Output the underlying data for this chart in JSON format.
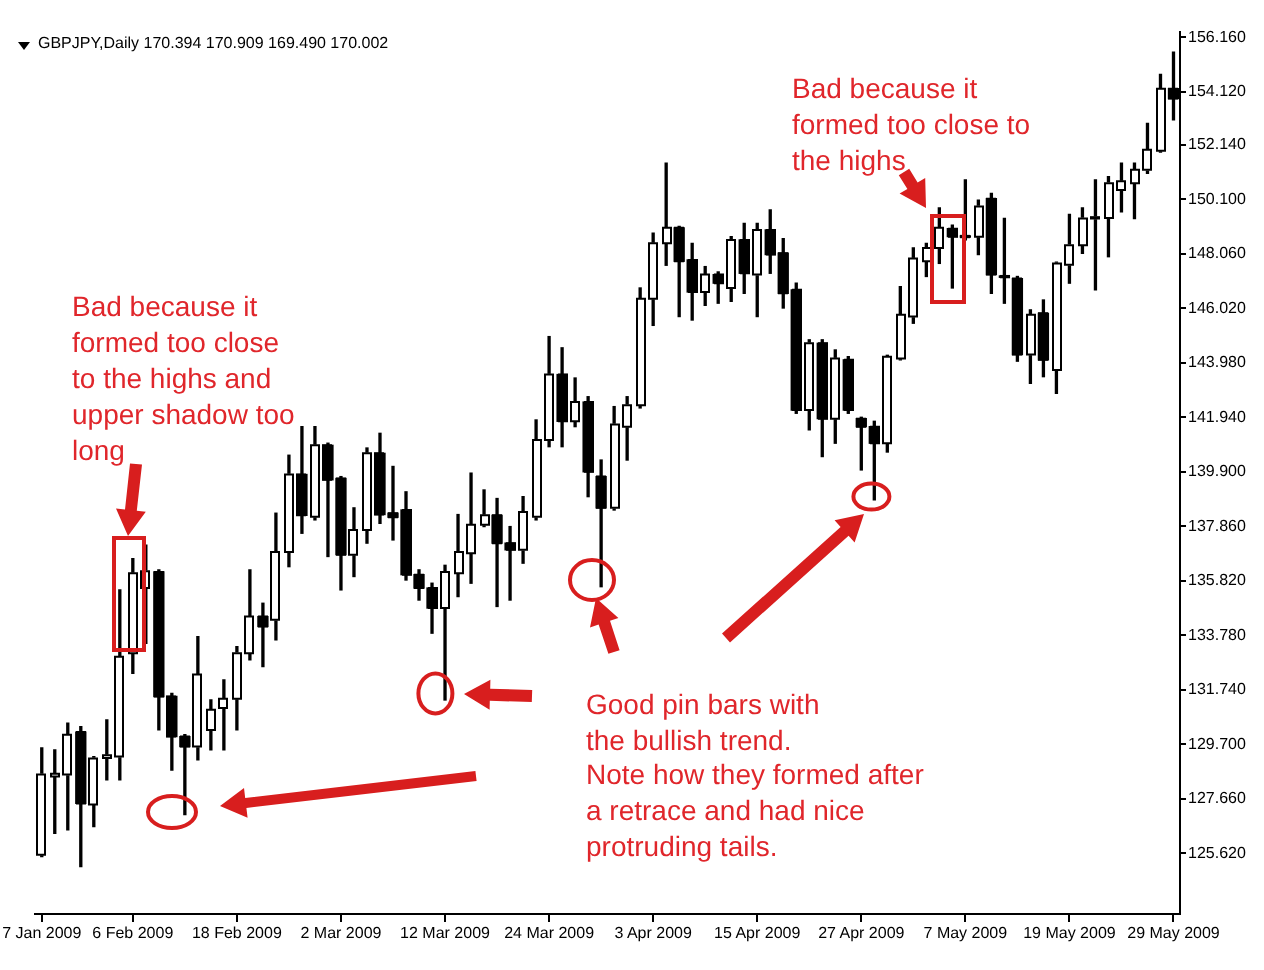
{
  "chart_data": {
    "type": "candlestick",
    "title": "GBPJPY,Daily 170.394 170.909 169.490 170.002",
    "categories": [
      "7 Jan 2009",
      null,
      null,
      null,
      null,
      null,
      null,
      "6 Feb 2009",
      null,
      null,
      null,
      null,
      null,
      null,
      null,
      "18 Feb 2009",
      null,
      null,
      null,
      null,
      null,
      null,
      null,
      "2 Mar 2009",
      null,
      null,
      null,
      null,
      null,
      null,
      null,
      "12 Mar 2009",
      null,
      null,
      null,
      null,
      null,
      null,
      null,
      "24 Mar 2009",
      null,
      null,
      null,
      null,
      null,
      null,
      null,
      "3 Apr 2009",
      null,
      null,
      null,
      null,
      null,
      null,
      null,
      "15 Apr 2009",
      null,
      null,
      null,
      null,
      null,
      null,
      null,
      "27 Apr 2009",
      null,
      null,
      null,
      null,
      null,
      null,
      null,
      "7 May 2009",
      null,
      null,
      null,
      null,
      null,
      null,
      null,
      "19 May 2009",
      null,
      null,
      null,
      null,
      null,
      null,
      null,
      "29 May 2009"
    ],
    "ohlc": [
      [
        125.57,
        129.57,
        125.5,
        128.57
      ],
      [
        128.5,
        129.49,
        126.37,
        128.6
      ],
      [
        128.57,
        130.49,
        126.5,
        130.06
      ],
      [
        130.16,
        130.36,
        125.12,
        127.49
      ],
      [
        127.45,
        129.24,
        126.62,
        129.17
      ],
      [
        129.19,
        130.61,
        128.37,
        129.29
      ],
      [
        129.24,
        135.48,
        128.37,
        132.98
      ],
      [
        133.11,
        136.65,
        132.36,
        136.1
      ],
      [
        135.55,
        137.15,
        133.48,
        136.18
      ],
      [
        136.15,
        136.23,
        130.24,
        131.49
      ],
      [
        131.49,
        131.61,
        128.74,
        129.99
      ],
      [
        129.99,
        130.06,
        127.07,
        129.62
      ],
      [
        129.62,
        133.73,
        129.12,
        132.31
      ],
      [
        130.24,
        131.36,
        129.49,
        130.99
      ],
      [
        131.06,
        132.11,
        129.49,
        131.41
      ],
      [
        131.41,
        133.36,
        130.24,
        133.11
      ],
      [
        133.11,
        136.23,
        132.86,
        134.48
      ],
      [
        134.48,
        134.98,
        132.61,
        134.11
      ],
      [
        134.36,
        138.35,
        133.61,
        136.9
      ],
      [
        136.9,
        140.52,
        136.35,
        139.8
      ],
      [
        139.8,
        141.59,
        137.6,
        138.27
      ],
      [
        138.22,
        141.59,
        138.1,
        140.89
      ],
      [
        140.89,
        140.97,
        136.73,
        139.6
      ],
      [
        139.65,
        139.72,
        135.48,
        136.8
      ],
      [
        136.8,
        138.55,
        135.98,
        137.72
      ],
      [
        137.72,
        140.79,
        137.23,
        140.59
      ],
      [
        140.59,
        141.34,
        137.97,
        138.3
      ],
      [
        138.35,
        140.1,
        137.35,
        138.2
      ],
      [
        138.47,
        139.15,
        135.85,
        136.05
      ],
      [
        136.05,
        136.23,
        135.1,
        135.55
      ],
      [
        135.55,
        135.73,
        133.86,
        134.8
      ],
      [
        134.8,
        136.4,
        131.36,
        136.15
      ],
      [
        136.1,
        138.3,
        135.23,
        136.9
      ],
      [
        136.85,
        139.85,
        135.73,
        137.92
      ],
      [
        137.92,
        139.22,
        137.85,
        138.27
      ],
      [
        138.27,
        138.9,
        134.86,
        137.23
      ],
      [
        137.23,
        137.85,
        135.1,
        136.98
      ],
      [
        136.98,
        138.97,
        136.48,
        138.4
      ],
      [
        138.22,
        141.84,
        138.1,
        141.09
      ],
      [
        141.09,
        144.96,
        140.84,
        143.54
      ],
      [
        143.54,
        144.54,
        140.84,
        141.79
      ],
      [
        141.79,
        143.41,
        141.59,
        142.51
      ],
      [
        142.51,
        142.71,
        138.97,
        139.9
      ],
      [
        139.72,
        140.34,
        135.6,
        138.55
      ],
      [
        138.55,
        142.34,
        138.47,
        141.67
      ],
      [
        141.59,
        142.71,
        140.34,
        142.39
      ],
      [
        142.39,
        146.78,
        142.29,
        146.38
      ],
      [
        146.38,
        148.83,
        145.38,
        148.45
      ],
      [
        148.45,
        151.45,
        147.63,
        149.03
      ],
      [
        149.03,
        149.08,
        145.71,
        147.78
      ],
      [
        147.83,
        148.45,
        145.58,
        146.63
      ],
      [
        146.63,
        147.58,
        146.13,
        147.28
      ],
      [
        147.28,
        147.38,
        146.21,
        146.96
      ],
      [
        146.78,
        148.7,
        146.28,
        148.58
      ],
      [
        148.58,
        149.2,
        146.58,
        147.33
      ],
      [
        147.28,
        149.2,
        145.71,
        148.95
      ],
      [
        148.95,
        149.7,
        147.33,
        148.03
      ],
      [
        148.08,
        148.63,
        146.03,
        146.58
      ],
      [
        146.71,
        146.96,
        142.09,
        142.21
      ],
      [
        142.21,
        144.84,
        141.47,
        144.71
      ],
      [
        144.71,
        144.84,
        140.47,
        141.89
      ],
      [
        141.89,
        144.46,
        140.97,
        144.14
      ],
      [
        144.09,
        144.21,
        142.09,
        142.21
      ],
      [
        141.89,
        141.94,
        139.97,
        141.59
      ],
      [
        141.59,
        141.79,
        138.85,
        140.97
      ],
      [
        140.97,
        144.26,
        140.64,
        144.21
      ],
      [
        144.14,
        146.83,
        144.09,
        145.78
      ],
      [
        145.71,
        148.28,
        145.46,
        147.88
      ],
      [
        147.78,
        148.45,
        147.21,
        148.28
      ],
      [
        148.28,
        149.78,
        147.7,
        149.03
      ],
      [
        149,
        149.13,
        146.78,
        148.7
      ],
      [
        148.73,
        150.82,
        148.58,
        148.68
      ],
      [
        148.7,
        150.07,
        148.03,
        149.83
      ],
      [
        150.12,
        150.32,
        146.58,
        147.28
      ],
      [
        147.23,
        149.38,
        146.21,
        147.18
      ],
      [
        147.13,
        147.21,
        144.04,
        144.29
      ],
      [
        144.29,
        145.96,
        143.21,
        145.78
      ],
      [
        145.83,
        146.33,
        143.46,
        144.09
      ],
      [
        143.71,
        147.75,
        142.84,
        147.7
      ],
      [
        147.65,
        149.53,
        146.96,
        148.38
      ],
      [
        148.38,
        149.78,
        148.08,
        149.38
      ],
      [
        149.38,
        150.82,
        146.71,
        149.43
      ],
      [
        149.4,
        150.95,
        147.95,
        150.7
      ],
      [
        150.45,
        151.45,
        149.63,
        150.77
      ],
      [
        150.7,
        151.45,
        149.38,
        151.2
      ],
      [
        151.2,
        152.94,
        151.07,
        151.95
      ],
      [
        151.92,
        154.77,
        151.87,
        154.24
      ],
      [
        154.24,
        155.61,
        153.07,
        153.87
      ]
    ],
    "color": "#000000",
    "colors": [
      "#ffffff",
      "#ffffff",
      "#ffffff",
      "#000000",
      "#ffffff",
      "#ffffff",
      "#ffffff",
      "#ffffff",
      "#ffffff",
      "#000000",
      "#000000",
      "#000000",
      "#ffffff",
      "#ffffff",
      "#ffffff",
      "#ffffff",
      "#ffffff",
      "#000000",
      "#ffffff",
      "#ffffff",
      "#000000",
      "#ffffff",
      "#000000",
      "#000000",
      "#ffffff",
      "#ffffff",
      "#000000",
      "#000000",
      "#000000",
      "#000000",
      "#000000",
      "#ffffff",
      "#ffffff",
      "#ffffff",
      "#ffffff",
      "#000000",
      "#000000",
      "#ffffff",
      "#ffffff",
      "#ffffff",
      "#000000",
      "#ffffff",
      "#000000",
      "#000000",
      "#ffffff",
      "#ffffff",
      "#ffffff",
      "#ffffff",
      "#ffffff",
      "#000000",
      "#000000",
      "#ffffff",
      "#000000",
      "#ffffff",
      "#000000",
      "#ffffff",
      "#000000",
      "#000000",
      "#000000",
      "#ffffff",
      "#000000",
      "#ffffff",
      "#000000",
      "#000000",
      "#000000",
      "#ffffff",
      "#ffffff",
      "#ffffff",
      "#ffffff",
      "#ffffff",
      "#000000",
      "#000000",
      "#ffffff",
      "#000000",
      "#000000",
      "#000000",
      "#ffffff",
      "#000000",
      "#ffffff",
      "#ffffff",
      "#ffffff",
      "#ffffff",
      "#ffffff",
      "#ffffff",
      "#ffffff",
      "#ffffff",
      "#ffffff",
      "#000000"
    ],
    "ylim": [
      123.35,
      156.36
    ],
    "yticks": [
      {
        "value": 125.62,
        "label": "125.620"
      },
      {
        "value": 127.66,
        "label": "127.660"
      },
      {
        "value": 129.7,
        "label": "129.700"
      },
      {
        "value": 131.74,
        "label": "131.740"
      },
      {
        "value": 133.78,
        "label": "133.780"
      },
      {
        "value": 135.82,
        "label": "135.820"
      },
      {
        "value": 137.86,
        "label": "137.860"
      },
      {
        "value": 139.9,
        "label": "139.900"
      },
      {
        "value": 141.94,
        "label": "141.940"
      },
      {
        "value": 143.98,
        "label": "143.980"
      },
      {
        "value": 146.02,
        "label": "146.020"
      },
      {
        "value": 148.06,
        "label": "148.060"
      },
      {
        "value": 150.1,
        "label": "150.100"
      },
      {
        "value": 152.14,
        "label": "152.140"
      },
      {
        "value": 154.12,
        "label": "154.120"
      },
      {
        "value": 156.16,
        "label": "156.160"
      }
    ],
    "annotations": [
      "Bad because it formed too close to the highs and upper shadow too long",
      "Bad because it formed too close to the highs",
      "Good pin bars with the bullish trend.",
      "Note how they formed after a retrace and had nice protruding tails."
    ]
  }
}
